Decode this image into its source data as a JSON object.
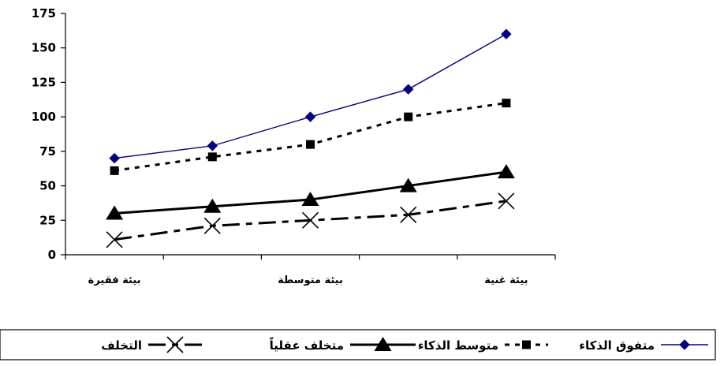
{
  "chart_data": {
    "type": "line",
    "categories": [
      "بيئة فقيرة",
      "",
      "بيئة متوسطة",
      "",
      "بيئة غنية"
    ],
    "ylim": [
      0,
      175
    ],
    "yticks": [
      0,
      25,
      50,
      75,
      100,
      125,
      150,
      175
    ],
    "grid": false,
    "legend_position": "bottom",
    "series": [
      {
        "name": "متفوق الذكاء",
        "values": [
          70,
          79,
          100,
          120,
          160
        ],
        "color": "#000080",
        "marker": "diamond",
        "line": "solid"
      },
      {
        "name": "متوسط الذكاء",
        "values": [
          61,
          71,
          80,
          100,
          110
        ],
        "color": "#000000",
        "marker": "square",
        "line": "dotted"
      },
      {
        "name": "متخلف عقلياً",
        "values": [
          30,
          35,
          40,
          50,
          60
        ],
        "color": "#000000",
        "marker": "triangle",
        "line": "solid"
      },
      {
        "name": "التخلف",
        "values": [
          11,
          21,
          25,
          29,
          39
        ],
        "color": "#000000",
        "marker": "x",
        "line": "dashdot"
      }
    ]
  }
}
